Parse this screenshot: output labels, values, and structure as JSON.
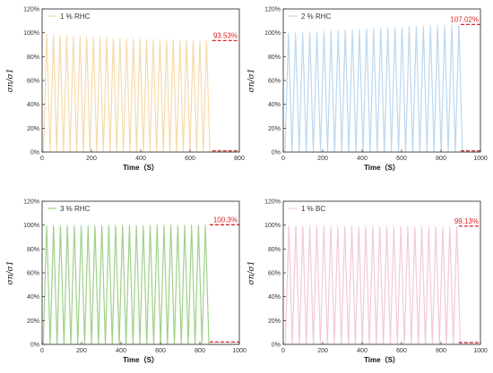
{
  "chart_data": [
    {
      "type": "line",
      "series": [
        {
          "name": "1 % RHC",
          "color": "#f5d9a6"
        }
      ],
      "xlabel": "Time（S）",
      "ylabel": "σn/σ1",
      "xlim": [
        0,
        800
      ],
      "ylim": [
        0,
        120
      ],
      "xticks": [
        0,
        200,
        400,
        600,
        800
      ],
      "yticks": [
        0,
        20,
        40,
        60,
        80,
        100,
        120
      ],
      "ytick_labels": [
        "0%",
        "20%",
        "40%",
        "60%",
        "80%",
        "100%",
        "120%"
      ],
      "cycles": 25,
      "cycle_start": 5,
      "cycle_period": 27,
      "peak_values": [
        99.5,
        99,
        98.5,
        98,
        97.8,
        97.5,
        97,
        96.8,
        96.5,
        96.2,
        96,
        95.8,
        95.6,
        95.4,
        95.2,
        95,
        94.8,
        94.6,
        94.4,
        94.2,
        94,
        93.9,
        93.8,
        93.6,
        93.53
      ],
      "annotation": "93.53%",
      "reference_line": 93.53,
      "residual_line": 1,
      "ref_x_range": [
        690,
        800
      ]
    },
    {
      "type": "line",
      "series": [
        {
          "name": "2 % RHC",
          "color": "#b9d6ef"
        }
      ],
      "xlabel": "Time（S）",
      "ylabel": "σn/σ1",
      "xlim": [
        0,
        1000
      ],
      "ylim": [
        0,
        120
      ],
      "xticks": [
        0,
        200,
        400,
        600,
        800,
        1000
      ],
      "yticks": [
        0,
        20,
        40,
        60,
        80,
        100,
        120
      ],
      "ytick_labels": [
        "0%",
        "20%",
        "40%",
        "60%",
        "80%",
        "100%",
        "120%"
      ],
      "cycles": 25,
      "cycle_start": 8,
      "cycle_period": 36,
      "peak_values": [
        100,
        100.3,
        100.6,
        101,
        101.3,
        101.6,
        102,
        102.3,
        102.6,
        103,
        103.3,
        103.6,
        104,
        104.3,
        104.6,
        105,
        105.3,
        105.6,
        105.9,
        106.1,
        106.3,
        106.5,
        106.7,
        106.9,
        107.02
      ],
      "annotation": "107.02%",
      "reference_line": 107.02,
      "residual_line": 1,
      "ref_x_range": [
        900,
        1000
      ]
    },
    {
      "type": "line",
      "series": [
        {
          "name": "3 % RHC",
          "color": "#9ccf85"
        }
      ],
      "xlabel": "Time（S）",
      "ylabel": "σn/σ1",
      "xlim": [
        0,
        1000
      ],
      "ylim": [
        0,
        120
      ],
      "xticks": [
        0,
        200,
        400,
        600,
        800,
        1000
      ],
      "yticks": [
        0,
        20,
        40,
        60,
        80,
        100,
        120
      ],
      "ytick_labels": [
        "0%",
        "20%",
        "40%",
        "60%",
        "80%",
        "100%",
        "120%"
      ],
      "cycles": 24,
      "cycle_start": 5,
      "cycle_period": 35,
      "peak_values": [
        100,
        100,
        100,
        100,
        100.1,
        100.1,
        100.1,
        100.1,
        100.1,
        100.2,
        100.2,
        100.2,
        100.2,
        100.2,
        100.2,
        100.2,
        100.3,
        100.3,
        100.3,
        100.3,
        100.3,
        100.3,
        100.3,
        100.3
      ],
      "annotation": "100.3%",
      "reference_line": 100.3,
      "residual_line": 2,
      "ref_x_range": [
        850,
        1000
      ]
    },
    {
      "type": "line",
      "series": [
        {
          "name": "1 % BC",
          "color": "#f2c6da"
        }
      ],
      "xlabel": "Time（S）",
      "ylabel": "σn/σ1",
      "xlim": [
        0,
        1000
      ],
      "ylim": [
        0,
        120
      ],
      "xticks": [
        0,
        200,
        400,
        600,
        800,
        1000
      ],
      "yticks": [
        0,
        20,
        40,
        60,
        80,
        100,
        120
      ],
      "ytick_labels": [
        "0%",
        "20%",
        "40%",
        "60%",
        "80%",
        "100%",
        "120%"
      ],
      "cycles": 25,
      "cycle_start": 10,
      "cycle_period": 35.5,
      "peak_values": [
        100,
        99.9,
        99.8,
        99.8,
        99.7,
        99.7,
        99.6,
        99.6,
        99.6,
        99.5,
        99.5,
        99.5,
        99.4,
        99.4,
        99.4,
        99.3,
        99.3,
        99.3,
        99.3,
        99.2,
        99.2,
        99.2,
        99.2,
        99.15,
        99.13
      ],
      "annotation": "99.13%",
      "reference_line": 99.13,
      "residual_line": 1.5,
      "ref_x_range": [
        890,
        1000
      ]
    }
  ],
  "style": {
    "axis_color": "#222222",
    "annotation_color": "#e02020",
    "reference_line_color": "#cc1111"
  }
}
